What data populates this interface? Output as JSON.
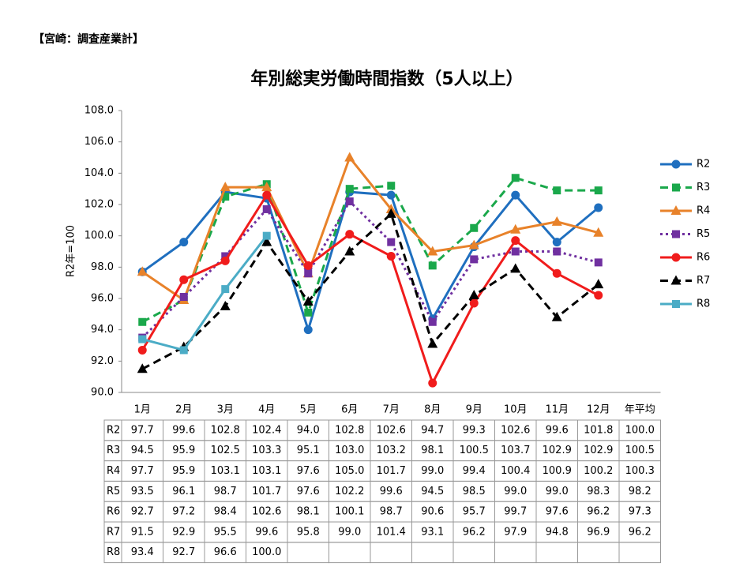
{
  "header": "【宮崎：調査産業計】",
  "chart_data": {
    "type": "line",
    "title": "年別総実労働時間指数（5人以上）",
    "y_label": "R2年=100",
    "categories": [
      "1月",
      "2月",
      "3月",
      "4月",
      "5月",
      "6月",
      "7月",
      "8月",
      "9月",
      "10月",
      "11月",
      "12月"
    ],
    "average_label": "年平均",
    "ylim": [
      90,
      108
    ],
    "yticks": [
      {
        "value": 90,
        "label": "90.0"
      },
      {
        "value": 92,
        "label": "92.0"
      },
      {
        "value": 94,
        "label": "94.0"
      },
      {
        "value": 96,
        "label": "96.0"
      },
      {
        "value": 98,
        "label": "98.0"
      },
      {
        "value": 100,
        "label": "100.0"
      },
      {
        "value": 102,
        "label": "102.0"
      },
      {
        "value": 104,
        "label": "104.0"
      },
      {
        "value": 106,
        "label": "106.0"
      },
      {
        "value": 108,
        "label": "108.0"
      }
    ],
    "legend": "right",
    "series": [
      {
        "name": "R2",
        "color": "#1f6fbf",
        "dash": "solid",
        "marker": "circle",
        "values": [
          97.7,
          99.6,
          102.8,
          102.4,
          94.0,
          102.8,
          102.6,
          94.7,
          99.3,
          102.6,
          99.6,
          101.8
        ],
        "value_labels": [
          "97.7",
          "99.6",
          "102.8",
          "102.4",
          "94.0",
          "102.8",
          "102.6",
          "94.7",
          "99.3",
          "102.6",
          "99.6",
          "101.8"
        ],
        "average": 100.0,
        "average_label": "100.0"
      },
      {
        "name": "R3",
        "color": "#1aa84b",
        "dash": "dashed",
        "marker": "square",
        "values": [
          94.5,
          95.9,
          102.5,
          103.3,
          95.1,
          103.0,
          103.2,
          98.1,
          100.5,
          103.7,
          102.9,
          102.9
        ],
        "value_labels": [
          "94.5",
          "95.9",
          "102.5",
          "103.3",
          "95.1",
          "103.0",
          "103.2",
          "98.1",
          "100.5",
          "103.7",
          "102.9",
          "102.9"
        ],
        "average": 100.5,
        "average_label": "100.5"
      },
      {
        "name": "R4",
        "color": "#e8822a",
        "dash": "solid",
        "marker": "triangle",
        "values": [
          97.7,
          95.9,
          103.1,
          103.1,
          97.6,
          105.0,
          101.7,
          99.0,
          99.4,
          100.4,
          100.9,
          100.2
        ],
        "value_labels": [
          "97.7",
          "95.9",
          "103.1",
          "103.1",
          "97.6",
          "105.0",
          "101.7",
          "99.0",
          "99.4",
          "100.4",
          "100.9",
          "100.2"
        ],
        "average": 100.3,
        "average_label": "100.3"
      },
      {
        "name": "R5",
        "color": "#7030a0",
        "dash": "dotted",
        "marker": "square",
        "values": [
          93.5,
          96.1,
          98.7,
          101.7,
          97.6,
          102.2,
          99.6,
          94.5,
          98.5,
          99.0,
          99.0,
          98.3
        ],
        "value_labels": [
          "93.5",
          "96.1",
          "98.7",
          "101.7",
          "97.6",
          "102.2",
          "99.6",
          "94.5",
          "98.5",
          "99.0",
          "99.0",
          "98.3"
        ],
        "average": 98.2,
        "average_label": "98.2"
      },
      {
        "name": "R6",
        "color": "#f01c1c",
        "dash": "solid",
        "marker": "circle",
        "values": [
          92.7,
          97.2,
          98.4,
          102.6,
          98.1,
          100.1,
          98.7,
          90.6,
          95.7,
          99.7,
          97.6,
          96.2
        ],
        "value_labels": [
          "92.7",
          "97.2",
          "98.4",
          "102.6",
          "98.1",
          "100.1",
          "98.7",
          "90.6",
          "95.7",
          "99.7",
          "97.6",
          "96.2"
        ],
        "average": 97.3,
        "average_label": "97.3"
      },
      {
        "name": "R7",
        "color": "#000000",
        "dash": "dashed",
        "marker": "triangle",
        "values": [
          91.5,
          92.9,
          95.5,
          99.6,
          95.8,
          99.0,
          101.4,
          93.1,
          96.2,
          97.9,
          94.8,
          96.9
        ],
        "value_labels": [
          "91.5",
          "92.9",
          "95.5",
          "99.6",
          "95.8",
          "99.0",
          "101.4",
          "93.1",
          "96.2",
          "97.9",
          "94.8",
          "96.9"
        ],
        "average": 96.2,
        "average_label": "96.2"
      },
      {
        "name": "R8",
        "color": "#4bacc6",
        "dash": "solid",
        "marker": "square",
        "values": [
          93.4,
          92.7,
          96.6,
          100.0,
          null,
          null,
          null,
          null,
          null,
          null,
          null,
          null
        ],
        "value_labels": [
          "93.4",
          "92.7",
          "96.6",
          "100.0",
          null,
          null,
          null,
          null,
          null,
          null,
          null,
          null
        ]
      }
    ]
  }
}
